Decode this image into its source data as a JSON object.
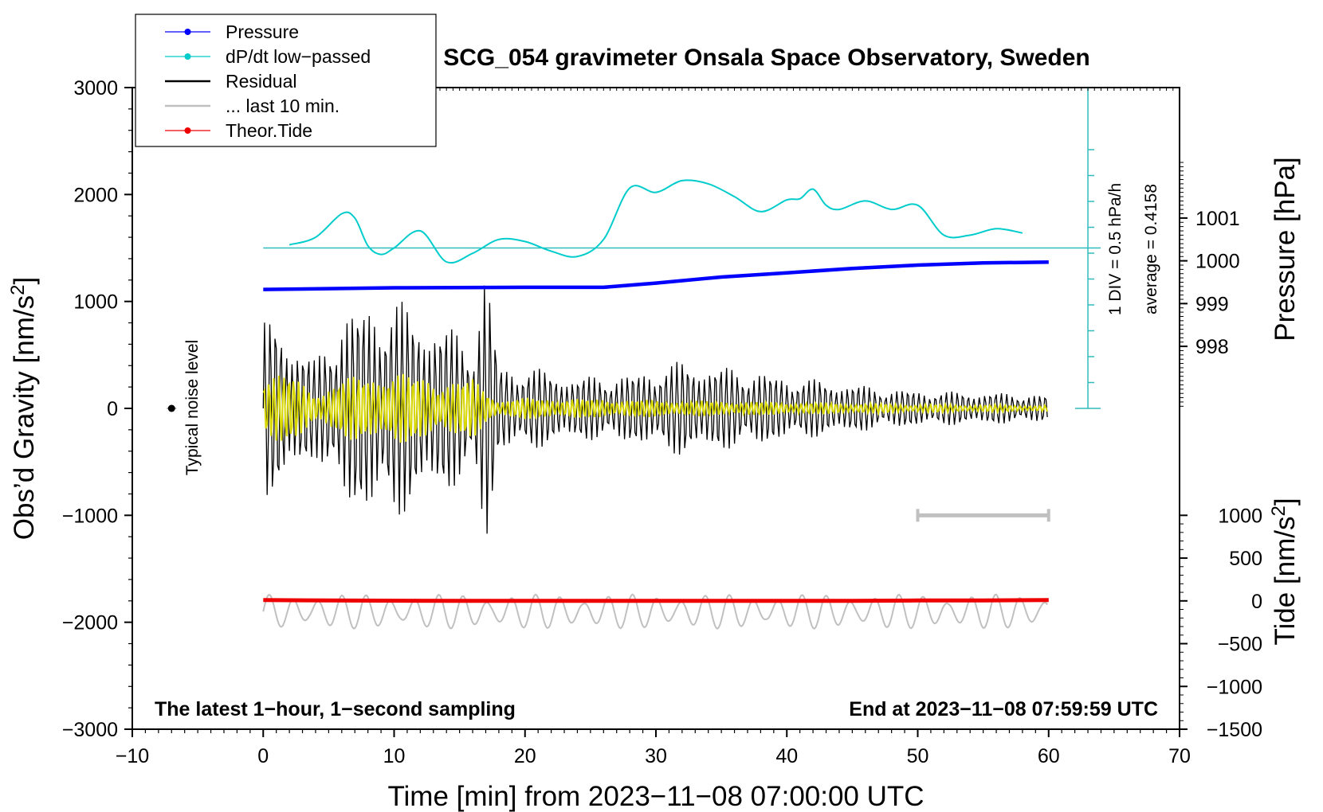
{
  "chart_data": {
    "type": "line",
    "title": "SCG_054 gravimeter Onsala Space Observatory, Sweden",
    "xlabel": "Time [min] from 2023−11−08 07:00:00 UTC",
    "ylabel_left": "Obs’d Gravity [nm/s",
    "ylabel_left_sup": "2",
    "ylabel_left_end": "]",
    "ylabel_pressure": "Pressure [hPa]",
    "ylabel_tide": "Tide [nm/s",
    "ylabel_tide_sup": "2",
    "ylabel_tide_end": "]",
    "xlim": [
      -10,
      70
    ],
    "ylim": [
      -3000,
      3000
    ],
    "x_ticks": [
      -10,
      0,
      10,
      20,
      30,
      40,
      50,
      60,
      70
    ],
    "x_tick_labels": [
      "−10",
      "0",
      "10",
      "20",
      "30",
      "40",
      "50",
      "60",
      "70"
    ],
    "y_ticks": [
      -3000,
      -2000,
      -1000,
      0,
      1000,
      2000,
      3000
    ],
    "y_tick_labels": [
      "−3000",
      "−2000",
      "−1000",
      "0",
      "1000",
      "2000",
      "3000"
    ],
    "pressure_ticks": [
      998,
      999,
      1000,
      1001
    ],
    "pressure_tick_labels": [
      "998",
      "999",
      "1000",
      "1001"
    ],
    "pressure_axis_map": {
      "hPa": [
        998,
        1001
      ],
      "gravity_units": [
        580,
        1780
      ]
    },
    "tide_ticks": [
      -1500,
      -1000,
      -500,
      0,
      500,
      1000
    ],
    "tide_tick_labels": [
      "−1500",
      "−1000",
      "−500",
      "0",
      "500",
      "1000"
    ],
    "tide_axis_map": {
      "nm_s2": [
        -1500,
        1000
      ],
      "gravity_units": [
        -3000,
        -1000
      ]
    },
    "dpdt_scale": {
      "label_div": "1 DIV = 0.5 hPa/h",
      "label_avg": "average = 0.4158",
      "divisions": 10
    },
    "legend": [
      {
        "name": "Pressure",
        "color": "#0000ff",
        "marker": true
      },
      {
        "name": "dP/dt low−passed",
        "color": "#00cccc",
        "marker": true
      },
      {
        "name": "Residual",
        "color": "#000000",
        "marker": false
      },
      {
        "name": "... last 10 min.",
        "color": "#c0c0c0",
        "marker": false
      },
      {
        "name": "Theor.Tide",
        "color": "#ee0000",
        "marker": true
      }
    ],
    "series": [
      {
        "name": "Pressure",
        "unit": "hPa",
        "color": "#0000ff",
        "x": [
          0,
          10,
          20,
          26,
          30,
          35,
          40,
          45,
          50,
          55,
          60
        ],
        "values": [
          999.33,
          999.37,
          999.38,
          999.38,
          999.48,
          999.62,
          999.72,
          999.82,
          999.9,
          999.95,
          999.97
        ]
      },
      {
        "name": "dP/dt low−passed",
        "unit": "gravity_units",
        "color": "#00cccc",
        "x": [
          2,
          4,
          6,
          7,
          8,
          9,
          10,
          12,
          14,
          16,
          18,
          20,
          22,
          24,
          26,
          28,
          30,
          32,
          34,
          36,
          38,
          40,
          41,
          42,
          43,
          44,
          46,
          48,
          50,
          52,
          54,
          56,
          58
        ],
        "values": [
          1530,
          1600,
          1820,
          1780,
          1520,
          1440,
          1500,
          1660,
          1370,
          1450,
          1580,
          1560,
          1470,
          1420,
          1580,
          2060,
          2020,
          2130,
          2100,
          1980,
          1840,
          1950,
          1960,
          2050,
          1900,
          1860,
          1940,
          1860,
          1900,
          1620,
          1620,
          1680,
          1640
        ]
      },
      {
        "name": "Residual",
        "unit": "gravity_units",
        "color": "#000000",
        "envelope_x": [
          0,
          1,
          2,
          4,
          6,
          8,
          10,
          12,
          14,
          16,
          17,
          18,
          20,
          24,
          28,
          32,
          36,
          40,
          44,
          48,
          52,
          56,
          60
        ],
        "envelope_amp": [
          800,
          900,
          700,
          450,
          900,
          1000,
          1050,
          900,
          800,
          600,
          1400,
          400,
          400,
          300,
          320,
          450,
          380,
          300,
          250,
          180,
          160,
          150,
          120
        ]
      },
      {
        "name": "Low-passed gravity",
        "unit": "gravity_units",
        "color": "#d8d800",
        "envelope_x": [
          0,
          2,
          4,
          6,
          8,
          10,
          12,
          14,
          16,
          18,
          20,
          30,
          40,
          50,
          60
        ],
        "envelope_amp": [
          380,
          320,
          150,
          280,
          320,
          350,
          300,
          260,
          280,
          80,
          100,
          80,
          60,
          40,
          30
        ]
      },
      {
        "name": "... last 10 min.",
        "unit": "gravity_units",
        "color": "#c0c0c0",
        "x_range": [
          0,
          60
        ],
        "offset": -1900,
        "amplitude": 160
      },
      {
        "name": "Theor.Tide",
        "unit": "nm_s2",
        "color": "#ee0000",
        "x": [
          0,
          5,
          15,
          25,
          35,
          45,
          50,
          55,
          60
        ],
        "values": [
          10,
          5,
          0,
          0,
          0,
          0,
          5,
          5,
          10
        ]
      }
    ],
    "noise_marker": {
      "x": -7,
      "y": 0,
      "label": "Typical noise level"
    },
    "last10_bar": {
      "x": [
        50,
        60
      ],
      "y": -1000
    },
    "annotations": {
      "bottom_left": "The latest 1−hour, 1−second sampling",
      "bottom_right": "End at 2023−11−08 07:59:59 UTC"
    }
  }
}
